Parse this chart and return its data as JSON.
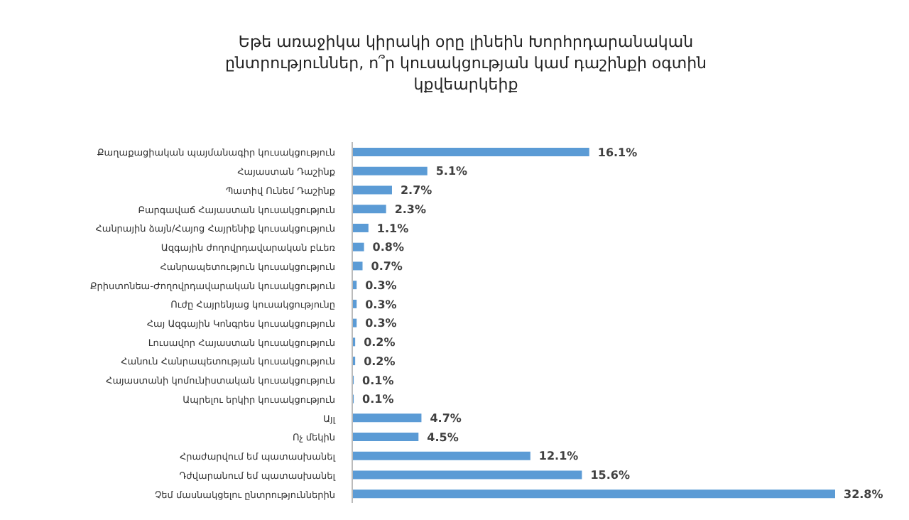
{
  "chart_data": {
    "type": "bar",
    "orientation": "horizontal",
    "title": "Եթե առաջիկա կիրակի օրը լինեին Խորհրդարանական ընտրություններ, ո՞ր կուսակցության կամ դաշինքի օգտին կքվեարկեիք",
    "categories": [
      "Քաղաքացիական պայմանագիր կուսակցություն",
      "Հայաստան Դաշինք",
      "Պատիվ Ունեմ Դաշինք",
      "Բարգավաճ Հայաստան կուսակցություն",
      "Հանրային ձայն/Հայոց Հայրենիք կուսակցություն",
      "Ազգային ժողովրդավարական բևեռ",
      "Հանրապետություն կուսակցություն",
      "Քրիստոնեա-Ժողովրդավարական կուսակցություն",
      "Ուժը Հայրենյաց կուսակցությունը",
      "Հայ Ազգային Կոնգրես կուսակցություն",
      "Լուսավոր Հայաստան կուսակցություն",
      "Հանուն Հանրապետության կուսակցություն",
      "Հայաստանի կոմունիստական կուսակցություն",
      "Ապրելու երկիր կուսակցություն",
      "Այլ",
      "Ոչ մեկին",
      "Հրաժարվում եմ պատասխանել",
      "Դժվարանում եմ պատասխանել",
      "Չեմ մասնակցելու ընտրություններին"
    ],
    "values": [
      16.1,
      5.1,
      2.7,
      2.3,
      1.1,
      0.8,
      0.7,
      0.3,
      0.3,
      0.3,
      0.2,
      0.2,
      0.1,
      0.1,
      4.7,
      4.5,
      12.1,
      15.6,
      32.8
    ],
    "value_labels": [
      "16.1%",
      "5.1%",
      "2.7%",
      "2.3%",
      "1.1%",
      "0.8%",
      "0.7%",
      "0.3%",
      "0.3%",
      "0.3%",
      "0.2%",
      "0.2%",
      "0.1%",
      "0.1%",
      "4.7%",
      "4.5%",
      "12.1%",
      "15.6%",
      "32.8%"
    ],
    "color": "#5b9bd5",
    "grid": false,
    "legend": false
  }
}
